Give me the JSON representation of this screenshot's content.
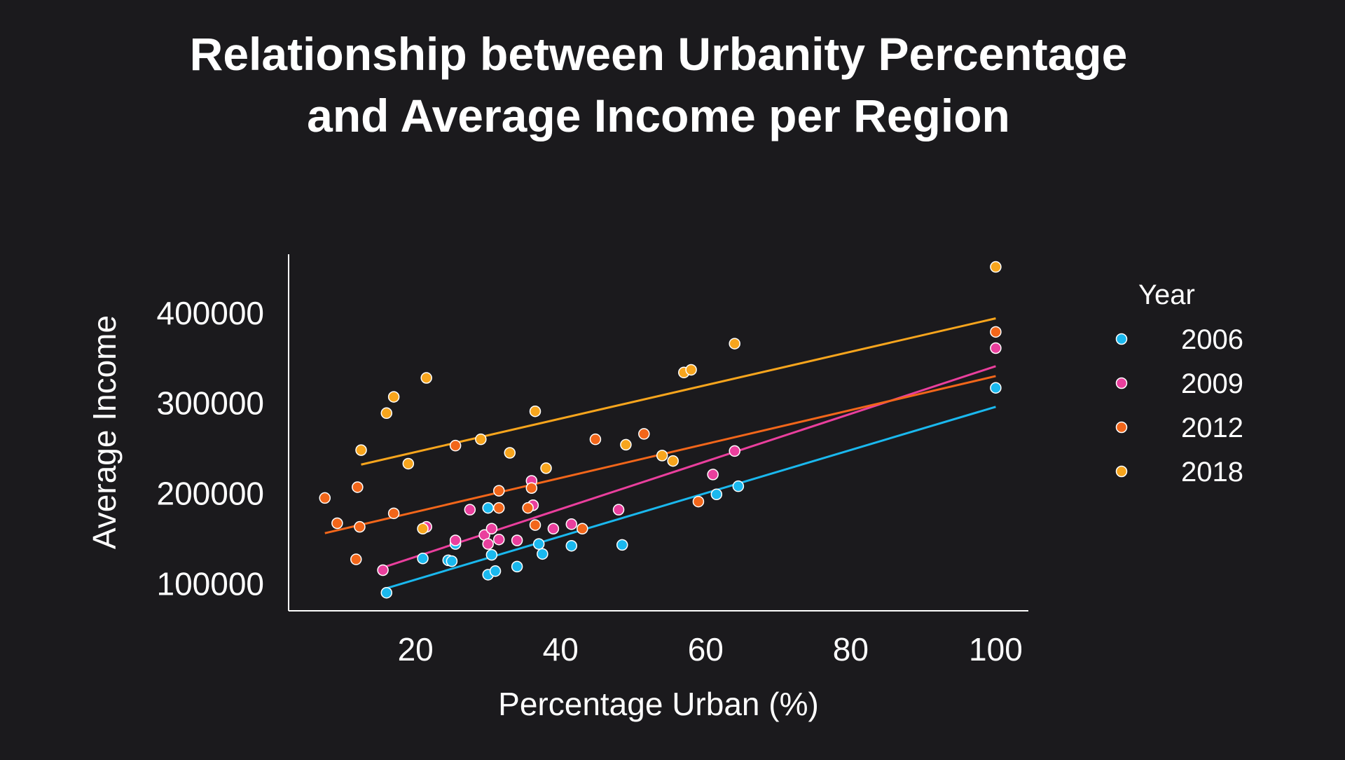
{
  "chart_data": {
    "type": "scatter",
    "title_lines": [
      "Relationship between Urbanity Percentage",
      "and Average Income per Region"
    ],
    "xlabel": "Percentage Urban (%)",
    "ylabel": "Average Income",
    "xlim": [
      2.5,
      104.5
    ],
    "ylim": [
      70000,
      465000
    ],
    "xticks": [
      20,
      40,
      60,
      80,
      100
    ],
    "yticks": [
      100000,
      200000,
      300000,
      400000
    ],
    "xtick_labels": [
      "20",
      "40",
      "60",
      "80",
      "100"
    ],
    "ytick_labels": [
      "100000",
      "200000",
      "300000",
      "400000"
    ],
    "grid": false,
    "legend": {
      "title": "Year",
      "position": "right"
    },
    "series": [
      {
        "name": "2006",
        "color": "#1ab8ee",
        "trend": [
          [
            16,
            95000
          ],
          [
            100,
            296000
          ]
        ],
        "points": [
          [
            16,
            90000
          ],
          [
            21,
            128000
          ],
          [
            24.5,
            126000
          ],
          [
            25,
            125000
          ],
          [
            25.5,
            144000
          ],
          [
            30,
            110000
          ],
          [
            30.5,
            132000
          ],
          [
            31,
            114000
          ],
          [
            34,
            119000
          ],
          [
            37,
            144000
          ],
          [
            37.5,
            133000
          ],
          [
            41.5,
            142000
          ],
          [
            48.5,
            143000
          ],
          [
            61.5,
            199000
          ],
          [
            64.5,
            208000
          ],
          [
            100,
            317000
          ],
          [
            30,
            184000
          ]
        ]
      },
      {
        "name": "2009",
        "color": "#ea3f9d",
        "trend": [
          [
            15.5,
            118000
          ],
          [
            100,
            341000
          ]
        ],
        "points": [
          [
            15.5,
            115000
          ],
          [
            21.5,
            163000
          ],
          [
            25.5,
            148000
          ],
          [
            27.5,
            182000
          ],
          [
            29.5,
            154000
          ],
          [
            30,
            144000
          ],
          [
            30.5,
            161000
          ],
          [
            31.5,
            149000
          ],
          [
            34,
            148000
          ],
          [
            36,
            214000
          ],
          [
            36.2,
            187000
          ],
          [
            39,
            161000
          ],
          [
            41.5,
            166000
          ],
          [
            48,
            182000
          ],
          [
            61,
            221000
          ],
          [
            64,
            247000
          ],
          [
            100,
            361000
          ]
        ]
      },
      {
        "name": "2012",
        "color": "#f2661a",
        "trend": [
          [
            7.5,
            156000
          ],
          [
            100,
            330000
          ]
        ],
        "points": [
          [
            7.5,
            195000
          ],
          [
            9.2,
            167000
          ],
          [
            11.8,
            127000
          ],
          [
            12,
            207000
          ],
          [
            12.3,
            163000
          ],
          [
            17,
            178000
          ],
          [
            25.5,
            253000
          ],
          [
            31.5,
            203000
          ],
          [
            31.5,
            184000
          ],
          [
            35.5,
            184000
          ],
          [
            36,
            206000
          ],
          [
            36.5,
            165000
          ],
          [
            43,
            161000
          ],
          [
            44.8,
            260000
          ],
          [
            51.5,
            266000
          ],
          [
            59,
            191000
          ],
          [
            100,
            379000
          ]
        ]
      },
      {
        "name": "2018",
        "color": "#f7a51d",
        "trend": [
          [
            12.5,
            232000
          ],
          [
            100,
            394000
          ]
        ],
        "points": [
          [
            12.5,
            248000
          ],
          [
            16,
            289000
          ],
          [
            17,
            307000
          ],
          [
            19,
            233000
          ],
          [
            21,
            161000
          ],
          [
            21.5,
            328000
          ],
          [
            29,
            260000
          ],
          [
            33,
            245000
          ],
          [
            36.5,
            291000
          ],
          [
            38,
            228000
          ],
          [
            49,
            254000
          ],
          [
            54,
            242000
          ],
          [
            55.5,
            236000
          ],
          [
            57,
            334000
          ],
          [
            58,
            337000
          ],
          [
            64,
            366000
          ],
          [
            100,
            451000
          ]
        ]
      }
    ]
  }
}
